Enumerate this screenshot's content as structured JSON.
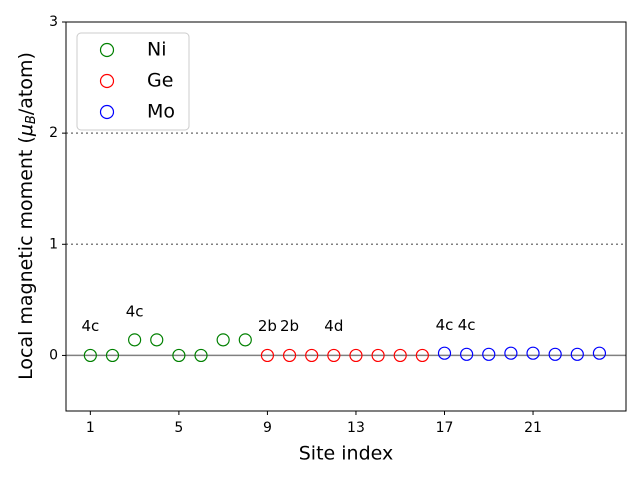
{
  "chart_data": {
    "type": "scatter",
    "xlabel": "Site index",
    "ylabel": [
      "Local magnetic moment (",
      "μ",
      "B",
      "/atom)"
    ],
    "xlim": [
      -0.1,
      25.2
    ],
    "ylim": [
      -0.5,
      3
    ],
    "xticks": [
      1,
      5,
      9,
      13,
      17,
      21
    ],
    "yticks": [
      0,
      1,
      2,
      3
    ],
    "reference_lines": [
      {
        "y": 0,
        "style": "solid"
      },
      {
        "y": 1,
        "style": "dotted"
      },
      {
        "y": 2,
        "style": "dotted"
      }
    ],
    "legend_position": "upper left",
    "series": [
      {
        "name": "Ni",
        "color": "green",
        "x": [
          1,
          2,
          3,
          4,
          5,
          6,
          7,
          8
        ],
        "values": [
          0,
          0,
          0.14,
          0.14,
          0,
          0,
          0.14,
          0.14
        ]
      },
      {
        "name": "Ge",
        "color": "red",
        "x": [
          9,
          10,
          11,
          12,
          13,
          14,
          15,
          16
        ],
        "values": [
          0,
          0,
          0,
          0,
          0,
          0,
          0,
          0
        ]
      },
      {
        "name": "Mo",
        "color": "blue",
        "x": [
          17,
          18,
          19,
          20,
          21,
          22,
          23,
          24
        ],
        "values": [
          0.02,
          0.01,
          0.01,
          0.02,
          0.02,
          0.01,
          0.01,
          0.02
        ]
      }
    ],
    "annotations": [
      {
        "text": "4c",
        "x": 1,
        "y": 0.26
      },
      {
        "text": "4c",
        "x": 3,
        "y": 0.39
      },
      {
        "text": "2b",
        "x": 9,
        "y": 0.26
      },
      {
        "text": "2b",
        "x": 10,
        "y": 0.26
      },
      {
        "text": "4d",
        "x": 12,
        "y": 0.26
      },
      {
        "text": "4c",
        "x": 17,
        "y": 0.27
      },
      {
        "text": "4c",
        "x": 18,
        "y": 0.27
      }
    ]
  }
}
